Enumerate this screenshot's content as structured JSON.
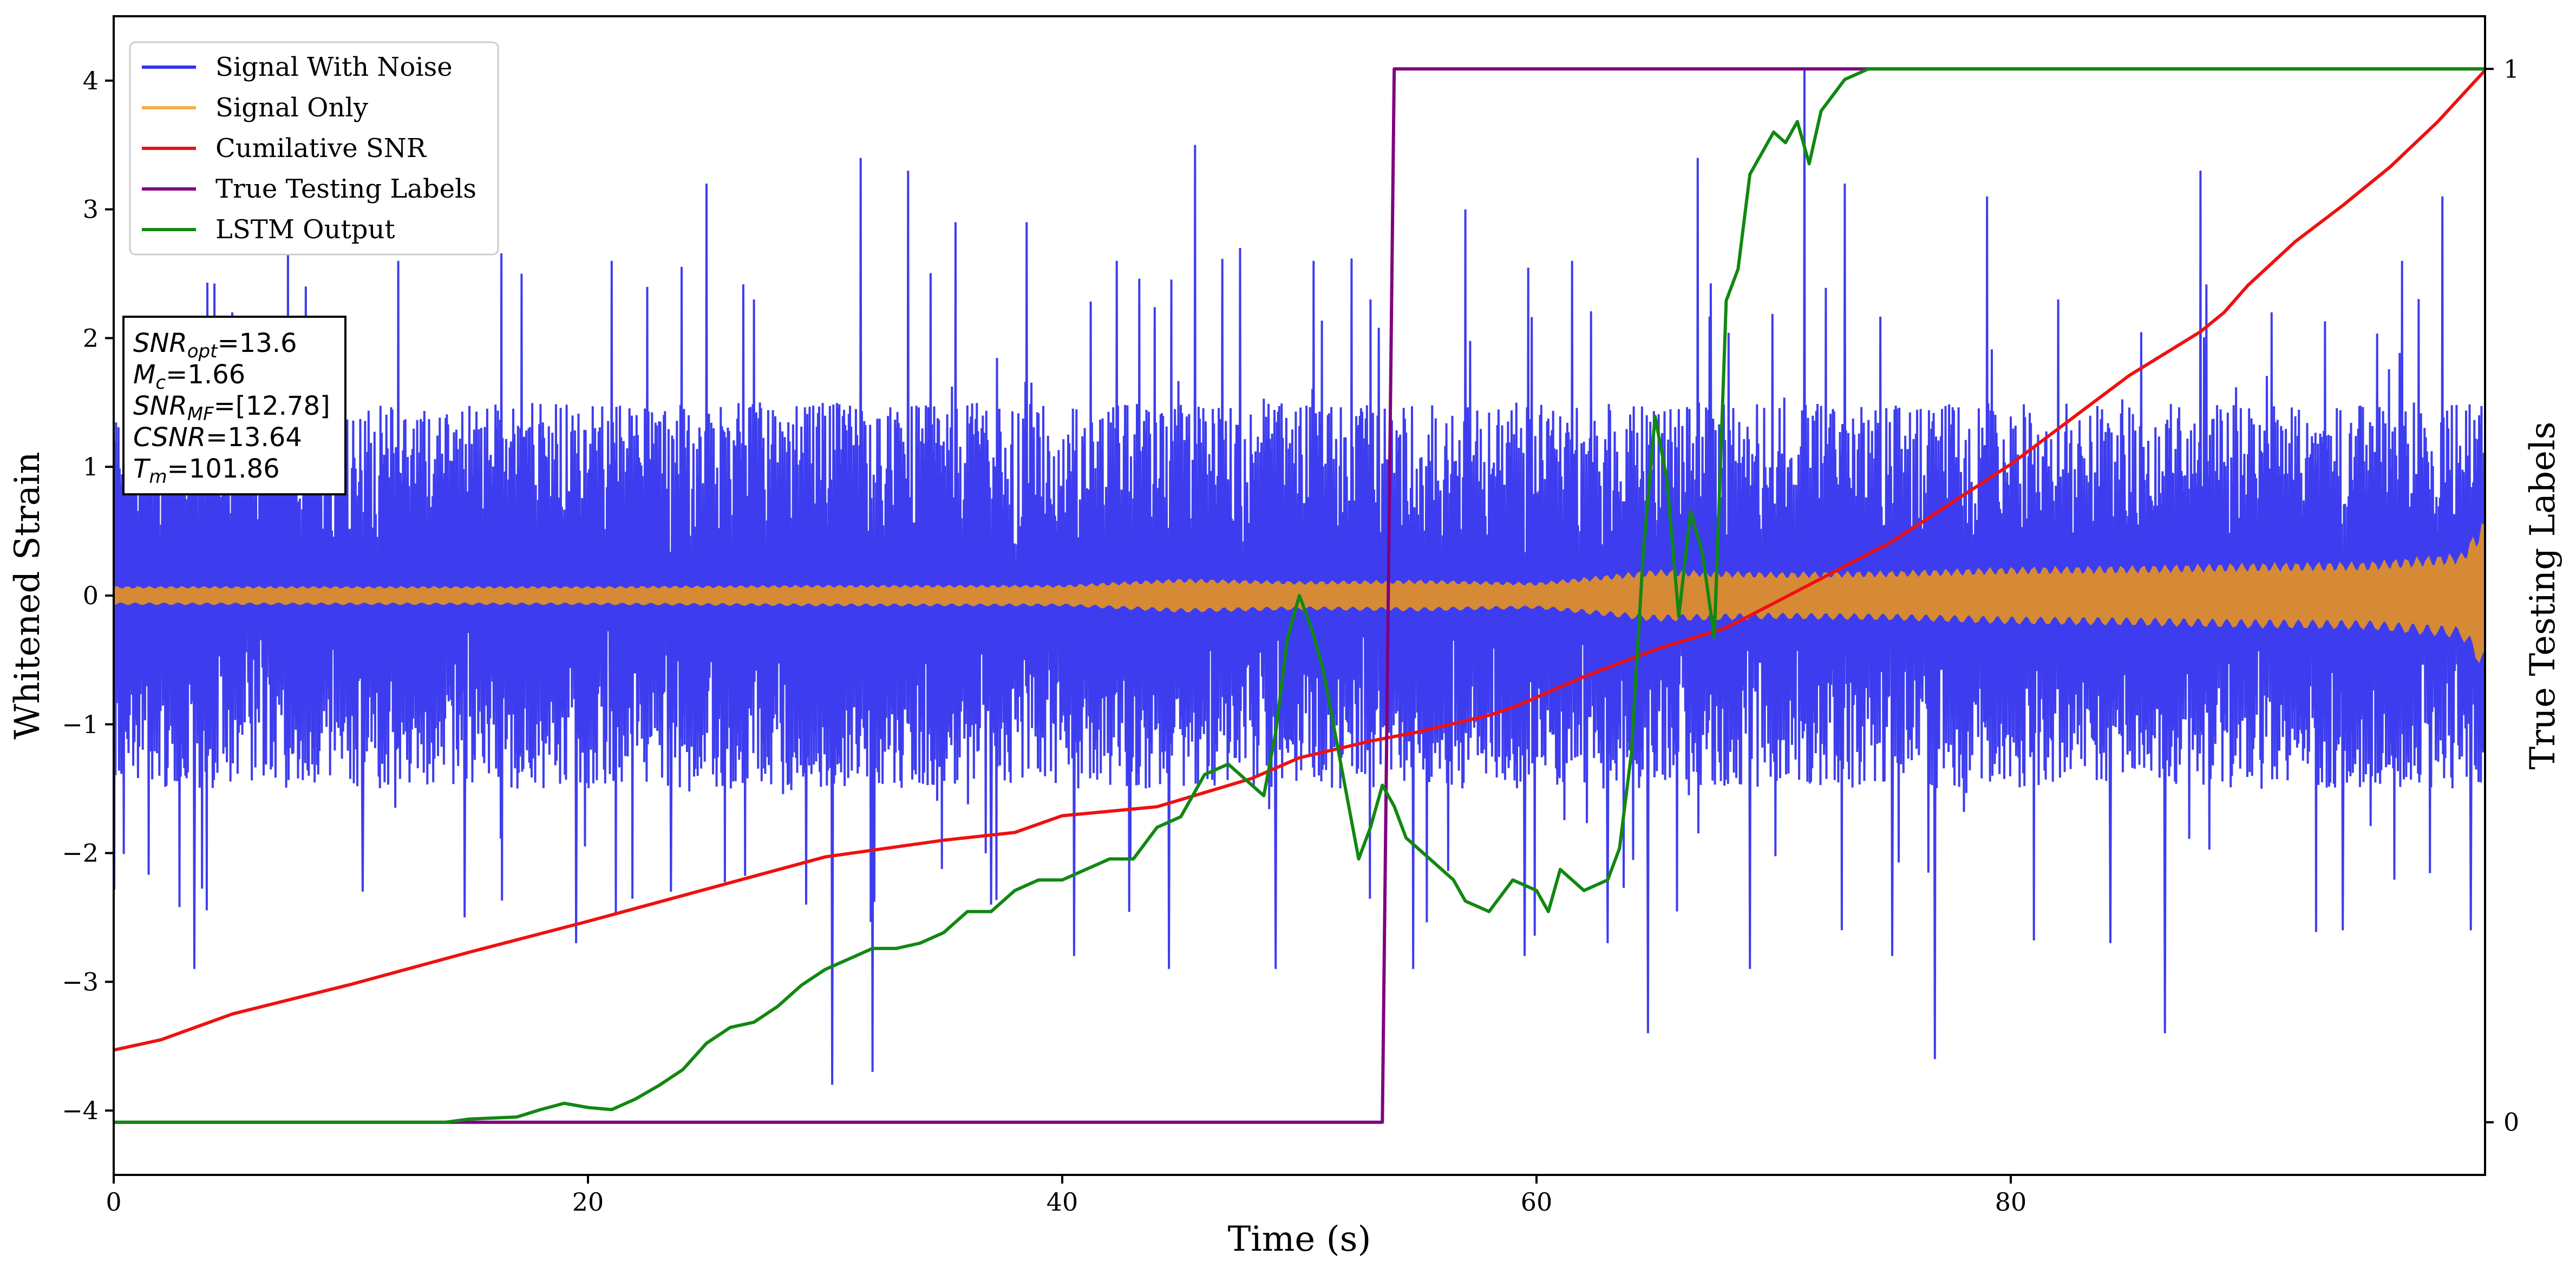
{
  "chart_data": {
    "type": "line",
    "xlabel": "Time (s)",
    "ylabel_left": "Whitened Strain",
    "ylabel_right": "True Testing Labels",
    "xlim": [
      0,
      100
    ],
    "ylim_left": [
      -4.5,
      4.5
    ],
    "ylim_right": [
      -0.05,
      1.05
    ],
    "x_ticks": [
      0,
      20,
      40,
      60,
      80
    ],
    "x_tick_labels": [
      "0",
      "20",
      "40",
      "60",
      "80"
    ],
    "y_ticks_left": [
      -4,
      -3,
      -2,
      -1,
      0,
      1,
      2,
      3,
      4
    ],
    "y_tick_labels_left": [
      "−4",
      "−3",
      "−2",
      "−1",
      "0",
      "1",
      "2",
      "3",
      "4"
    ],
    "y_ticks_right": [
      0,
      1
    ],
    "y_tick_labels_right": [
      "0",
      "1"
    ],
    "grid": false,
    "legend_position": "top-left",
    "legend": [
      {
        "name": "Signal With Noise",
        "color": "#3333ee"
      },
      {
        "name": "Signal Only",
        "color": "#f5b041"
      },
      {
        "name": "Cumilative SNR",
        "color": "#ee1111"
      },
      {
        "name": "True Testing Labels",
        "color": "#800080"
      },
      {
        "name": "LSTM Output",
        "color": "#118811"
      }
    ],
    "info_box": {
      "lines": [
        {
          "sym": "SNR",
          "sub": "opt",
          "value": "=13.6"
        },
        {
          "sym": "M",
          "sub": "c",
          "value": "=1.66"
        },
        {
          "sym": "SNR",
          "sub": "MF",
          "value": "=[12.78]"
        },
        {
          "sym": "CSNR",
          "sub": "",
          "value": "=13.64"
        },
        {
          "sym": "T",
          "sub": "m",
          "value": "=101.86"
        }
      ]
    },
    "series": [
      {
        "name": "Signal With Noise",
        "axis": "left",
        "style": "noise-band",
        "color": "#3333ee",
        "typical_band": [
          -1.05,
          1.1
        ],
        "peak_max": 4.1,
        "peak_min": -3.8,
        "spikes": [
          [
            1.2,
            1.55
          ],
          [
            3.4,
            -2.9
          ],
          [
            5.0,
            2.2
          ],
          [
            8.1,
            2.4
          ],
          [
            10.5,
            -2.3
          ],
          [
            12.0,
            2.6
          ],
          [
            14.8,
            -2.5
          ],
          [
            17.2,
            2.5
          ],
          [
            19.5,
            -2.7
          ],
          [
            21.0,
            2.6
          ],
          [
            23.5,
            -2.3
          ],
          [
            25.0,
            3.2
          ],
          [
            27.0,
            2.3
          ],
          [
            29.2,
            -2.4
          ],
          [
            30.3,
            -3.8
          ],
          [
            31.5,
            3.4
          ],
          [
            32.0,
            -3.7
          ],
          [
            33.5,
            3.3
          ],
          [
            35.5,
            2.9
          ],
          [
            37.0,
            -2.4
          ],
          [
            38.5,
            2.9
          ],
          [
            40.5,
            -2.8
          ],
          [
            42.3,
            2.6
          ],
          [
            44.5,
            -2.9
          ],
          [
            45.6,
            3.5
          ],
          [
            47.5,
            2.7
          ],
          [
            49.0,
            -2.9
          ],
          [
            50.6,
            2.6
          ],
          [
            53.0,
            2.3
          ],
          [
            54.8,
            -2.9
          ],
          [
            57.0,
            3.0
          ],
          [
            59.5,
            -2.8
          ],
          [
            61.5,
            2.6
          ],
          [
            63.0,
            -2.7
          ],
          [
            64.7,
            -3.4
          ],
          [
            66.8,
            3.4
          ],
          [
            69.0,
            -2.9
          ],
          [
            71.3,
            4.1
          ],
          [
            73.0,
            3.2
          ],
          [
            75.0,
            -2.8
          ],
          [
            76.8,
            -3.6
          ],
          [
            79.0,
            3.1
          ],
          [
            82.0,
            2.3
          ],
          [
            84.2,
            -2.7
          ],
          [
            86.5,
            -3.4
          ],
          [
            88.0,
            3.3
          ],
          [
            91.0,
            2.2
          ],
          [
            94.0,
            -2.6
          ],
          [
            96.5,
            2.6
          ],
          [
            98.2,
            3.1
          ],
          [
            99.4,
            -2.6
          ]
        ]
      },
      {
        "name": "Signal Only",
        "axis": "left",
        "style": "envelope",
        "color": "#d68a35",
        "x": [
          0,
          10,
          20,
          30,
          40,
          45,
          50,
          55,
          60,
          65,
          70,
          75,
          80,
          85,
          90,
          95,
          99,
          100
        ],
        "amplitude": [
          0.07,
          0.07,
          0.07,
          0.08,
          0.08,
          0.13,
          0.11,
          0.12,
          0.1,
          0.2,
          0.18,
          0.19,
          0.22,
          0.23,
          0.25,
          0.26,
          0.33,
          0.6
        ]
      },
      {
        "name": "Cumilative SNR",
        "axis": "left",
        "color": "#ee1111",
        "x": [
          0,
          2,
          5,
          10,
          15,
          20,
          25,
          30,
          35,
          38,
          40,
          44,
          48,
          50,
          53,
          55,
          58,
          59,
          62,
          65,
          68,
          70,
          75,
          80,
          85,
          88,
          89,
          90,
          92,
          94,
          96,
          98,
          100
        ],
        "y": [
          -3.53,
          -3.45,
          -3.25,
          -3.02,
          -2.77,
          -2.53,
          -2.28,
          -2.03,
          -1.9,
          -1.84,
          -1.71,
          -1.64,
          -1.42,
          -1.26,
          -1.13,
          -1.06,
          -0.93,
          -0.87,
          -0.63,
          -0.42,
          -0.25,
          -0.06,
          0.42,
          1.02,
          1.71,
          2.05,
          2.2,
          2.41,
          2.75,
          3.03,
          3.33,
          3.68,
          4.08
        ]
      },
      {
        "name": "True Testing Labels",
        "axis": "right",
        "color": "#800080",
        "x": [
          0,
          53.5,
          54.0,
          100
        ],
        "y": [
          0,
          0,
          1,
          1
        ]
      },
      {
        "name": "LSTM Output",
        "axis": "right",
        "color": "#118811",
        "x": [
          0,
          14,
          15,
          17,
          18,
          19,
          20,
          21,
          22,
          23,
          24,
          25,
          26,
          27,
          28,
          29,
          30,
          31,
          32,
          33,
          34,
          35,
          36,
          37,
          38,
          39,
          40,
          41,
          42,
          43,
          44,
          45,
          46,
          47,
          48,
          48.5,
          49,
          49.5,
          50,
          50.5,
          51,
          51.5,
          52,
          52.5,
          53,
          53.5,
          54,
          54.5,
          55,
          56,
          56.5,
          57,
          58,
          59,
          60,
          60.5,
          61,
          62,
          63,
          63.5,
          64,
          64.5,
          65,
          65.5,
          66,
          66.5,
          67,
          67.5,
          68,
          68.5,
          69,
          70,
          70.5,
          71,
          71.5,
          72,
          73,
          74,
          75,
          80,
          90,
          100
        ],
        "y": [
          0,
          0,
          0.003,
          0.005,
          0.012,
          0.018,
          0.014,
          0.012,
          0.022,
          0.035,
          0.05,
          0.075,
          0.09,
          0.095,
          0.11,
          0.13,
          0.145,
          0.155,
          0.165,
          0.165,
          0.17,
          0.18,
          0.2,
          0.2,
          0.22,
          0.23,
          0.23,
          0.24,
          0.25,
          0.25,
          0.28,
          0.29,
          0.33,
          0.34,
          0.32,
          0.31,
          0.37,
          0.46,
          0.5,
          0.47,
          0.43,
          0.37,
          0.31,
          0.25,
          0.28,
          0.32,
          0.3,
          0.27,
          0.26,
          0.24,
          0.23,
          0.21,
          0.2,
          0.23,
          0.22,
          0.2,
          0.24,
          0.22,
          0.23,
          0.26,
          0.35,
          0.54,
          0.67,
          0.61,
          0.48,
          0.58,
          0.54,
          0.46,
          0.78,
          0.81,
          0.9,
          0.94,
          0.93,
          0.95,
          0.91,
          0.96,
          0.99,
          1,
          1,
          1,
          1,
          1
        ]
      }
    ]
  }
}
